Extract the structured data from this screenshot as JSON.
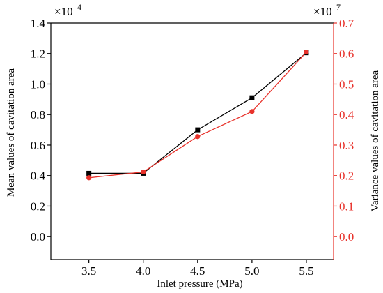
{
  "chart_data": {
    "type": "line",
    "title": "",
    "xlabel": "Inlet pressure (MPa)",
    "ylabel_left": "Mean values of cavitation area",
    "ylabel_right": "Variance values of cavitation area",
    "x": [
      3.5,
      4.0,
      4.5,
      5.0,
      5.5
    ],
    "x_ticks": [
      "3.5",
      "4.0",
      "4.5",
      "5.0",
      "5.5"
    ],
    "xlim": [
      3.15,
      5.75
    ],
    "left_axis": {
      "ylim": [
        -0.15,
        1.4
      ],
      "ticks": [
        "0.0",
        "0.2",
        "0.4",
        "0.6",
        "0.8",
        "1.0",
        "1.2",
        "1.4"
      ],
      "multiplier": {
        "base": "×10",
        "exp": "4"
      },
      "color": "#000000"
    },
    "right_axis": {
      "ylim": [
        -0.075,
        0.7
      ],
      "ticks": [
        "0.0",
        "0.1",
        "0.2",
        "0.3",
        "0.4",
        "0.5",
        "0.6",
        "0.7"
      ],
      "multiplier": {
        "base": "×10",
        "exp": "7"
      },
      "color": "#e8322b"
    },
    "series": [
      {
        "axis": "left",
        "color": "#000000",
        "marker": "square",
        "values": [
          0.415,
          0.415,
          0.7,
          0.91,
          1.205
        ]
      },
      {
        "axis": "right",
        "color": "#e8322b",
        "marker": "circle",
        "values": [
          0.193,
          0.212,
          0.328,
          0.41,
          0.605
        ]
      }
    ],
    "grid": false,
    "legend": "none"
  }
}
